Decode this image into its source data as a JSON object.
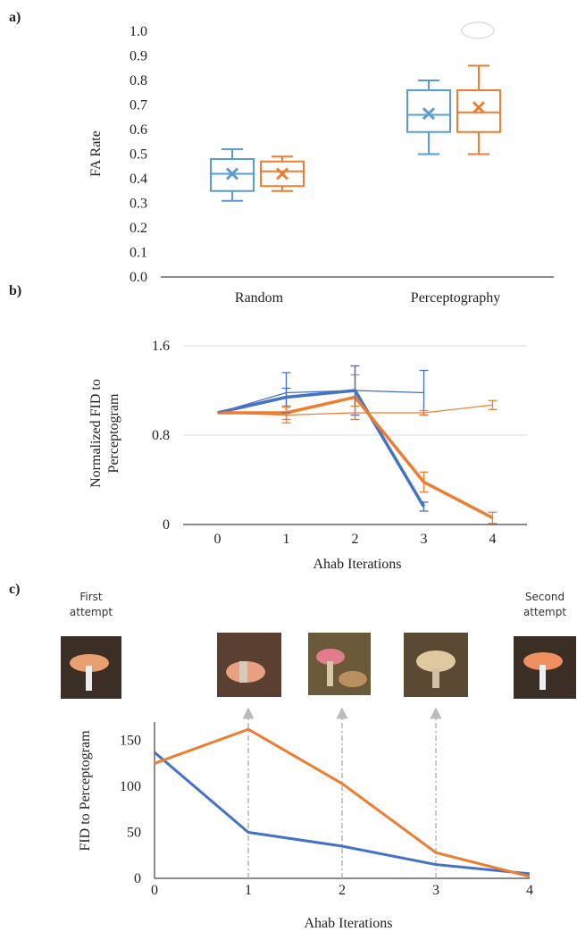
{
  "chart_data": [
    {
      "type": "box",
      "panel": "a)",
      "ylabel": "FA Rate",
      "categories": [
        "Random",
        "Perceptography"
      ],
      "ylim": [
        0,
        1
      ],
      "yticks": [
        {
          "value": 0,
          "label": "0.0"
        },
        0.1,
        0.2,
        0.3,
        0.4,
        0.5,
        0.6,
        0.7,
        0.8,
        0.9,
        {
          "value": 1,
          "label": "1.0"
        }
      ],
      "series": [
        {
          "color": "#5b9bd5",
          "min": [
            0.31,
            0.5
          ],
          "q1": [
            0.35,
            0.59
          ],
          "median": [
            0.42,
            0.66
          ],
          "q3": [
            0.48,
            0.76
          ],
          "max": [
            0.52,
            0.8
          ],
          "mean": [
            0.42,
            0.665
          ]
        },
        {
          "color": "#ed7d31",
          "min": [
            0.35,
            0.5
          ],
          "q1": [
            0.37,
            0.59
          ],
          "median": [
            0.43,
            0.67
          ],
          "q3": [
            0.47,
            0.76
          ],
          "max": [
            0.49,
            0.86
          ],
          "mean": [
            0.42,
            0.69
          ]
        }
      ]
    },
    {
      "type": "line",
      "panel": "b)",
      "ylabel": [
        "Normalized FID to",
        "Perceptogram"
      ],
      "xlabel": "Ahab Iterations",
      "x": [
        0,
        1,
        2,
        3,
        4
      ],
      "xlim": [
        -0.5,
        4.5
      ],
      "xticks": [
        0,
        1,
        2,
        3,
        4
      ],
      "ylim": [
        0,
        1.6
      ],
      "yticks": [
        0,
        0.8,
        1.6
      ],
      "grid": true,
      "series": [
        {
          "color": "#4472c4",
          "line_width": 3.5,
          "values": [
            1.0,
            1.14,
            1.2,
            0.16,
            null
          ],
          "errors": [
            0,
            0.08,
            0.22,
            0.04,
            null
          ]
        },
        {
          "color": "#ed7d31",
          "line_width": 3.5,
          "values": [
            1.0,
            1.0,
            1.14,
            0.38,
            0.06
          ],
          "errors": [
            0,
            0.06,
            0.2,
            0.09,
            0.05
          ]
        },
        {
          "color": "#4472c4",
          "line_width": 1.2,
          "values": [
            1.0,
            1.18,
            1.2,
            1.18,
            null
          ],
          "errors": [
            0,
            0.18,
            0.22,
            0.2,
            null
          ]
        },
        {
          "color": "#ed7d31",
          "line_width": 1.2,
          "values": [
            1.0,
            0.98,
            1.0,
            1.0,
            1.07
          ],
          "errors": [
            0,
            0.07,
            0.06,
            0.02,
            0.04
          ]
        }
      ]
    },
    {
      "type": "line",
      "panel": "c)",
      "ylabel": "FID to Perceptogram",
      "xlabel": "Ahab Iterations",
      "annotations": [
        "First attempt",
        "Second attempt"
      ],
      "x": [
        0,
        1,
        2,
        3,
        4
      ],
      "xlim": [
        0,
        4
      ],
      "xticks": [
        0,
        1,
        2,
        3,
        4
      ],
      "ylim": [
        0,
        170
      ],
      "yticks": [
        0,
        50,
        100,
        150
      ],
      "series": [
        {
          "color": "#4472c4",
          "line_width": 3,
          "values": [
            137,
            50,
            35,
            15,
            5
          ]
        },
        {
          "color": "#ed7d31",
          "line_width": 3,
          "values": [
            125,
            162,
            103,
            28,
            2
          ]
        }
      ]
    }
  ]
}
